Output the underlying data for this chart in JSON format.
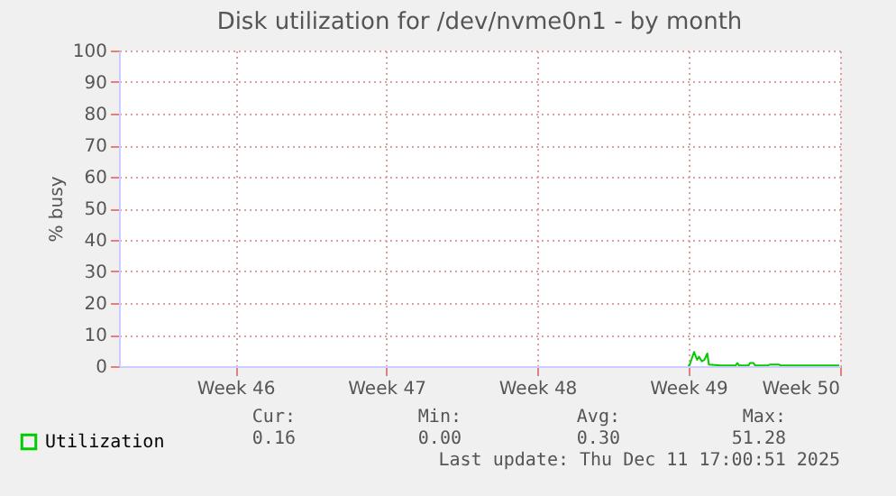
{
  "chart_data": {
    "type": "line",
    "title": "Disk utilization for /dev/nvme0n1 - by month",
    "ylabel": "% busy",
    "x": [
      "2025-12-04T16:00",
      "2025-12-04T17:40",
      "2025-12-04T22:30",
      "2025-12-05T01:50",
      "2025-12-05T04:00",
      "2025-12-05T07:10",
      "2025-12-05T10:00",
      "2025-12-05T13:10",
      "2025-12-05T15:00",
      "2025-12-06T04:00",
      "2025-12-06T20:50",
      "2025-12-06T22:40",
      "2025-12-07T00:40",
      "2025-12-07T11:10",
      "2025-12-07T12:40",
      "2025-12-07T16:40",
      "2025-12-07T18:20",
      "2025-12-08T08:50",
      "2025-12-08T10:40",
      "2025-12-08T20:50",
      "2025-12-08T23:10",
      "2025-12-11T16:00"
    ],
    "series": [
      {
        "name": "Utilization",
        "color": "#00cc00",
        "values": [
          0,
          0.5,
          4.5,
          2,
          3,
          1.5,
          2,
          4,
          0.5,
          0.2,
          0.2,
          1,
          0.2,
          0.2,
          1,
          1,
          0.2,
          0.2,
          0.5,
          0.5,
          0.2,
          0.2
        ]
      }
    ],
    "xlim": [
      "2025-11-08T06:30",
      "2025-12-11T17:00"
    ],
    "xticks": [
      {
        "value": "2025-11-13T16:00",
        "label": "Week 46"
      },
      {
        "value": "2025-11-20T16:00",
        "label": "Week 47"
      },
      {
        "value": "2025-11-27T16:00",
        "label": "Week 48"
      },
      {
        "value": "2025-12-04T16:00",
        "label": "Week 49"
      },
      {
        "value": "2025-12-11T16:00",
        "label": "Week 50"
      }
    ],
    "ylim": [
      0,
      100
    ],
    "yticks": [
      0,
      10,
      20,
      30,
      40,
      50,
      60,
      70,
      80,
      90,
      100
    ],
    "grid": true,
    "legend": "bottom",
    "marker": "none",
    "line_style": "solid",
    "annotations": [
      "Cur:",
      "Min:",
      "Avg:",
      "Max:",
      "0.16",
      "0.00",
      "0.30",
      "51.28",
      "Last update: Thu Dec 11 17:00:51 2025"
    ]
  }
}
